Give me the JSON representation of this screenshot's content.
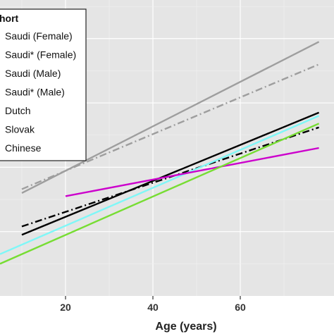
{
  "chart_data": {
    "type": "line",
    "xlabel": "Age (years)",
    "ylabel": "",
    "title": "",
    "xlim": [
      5,
      78
    ],
    "x_ticks": [
      20,
      40,
      60
    ],
    "grid": true,
    "legend": {
      "title": "hort",
      "placement": "top-left"
    },
    "series": [
      {
        "name": "Saudi (Female)",
        "color": "#9e9e9e",
        "dash": "solid",
        "x": [
          10,
          78
        ],
        "y": [
          0.6,
          2.95
        ]
      },
      {
        "name": "Saudi* (Female)",
        "color": "#9e9e9e",
        "dash": "dashdot",
        "x": [
          10,
          78
        ],
        "y": [
          0.66,
          2.6
        ]
      },
      {
        "name": "Saudi (Male)",
        "color": "#000000",
        "dash": "solid",
        "x": [
          10,
          78
        ],
        "y": [
          -0.05,
          1.85
        ]
      },
      {
        "name": "Saudi* (Male)",
        "color": "#000000",
        "dash": "dashdot",
        "x": [
          10,
          78
        ],
        "y": [
          0.08,
          1.62
        ]
      },
      {
        "name": "Dutch",
        "color": "#7ff7f7",
        "dash": "solid",
        "x": [
          5,
          78
        ],
        "y": [
          -0.35,
          1.8
        ]
      },
      {
        "name": "Slovak",
        "color": "#cc00cc",
        "dash": "solid",
        "x": [
          20,
          78
        ],
        "y": [
          0.55,
          1.3
        ]
      },
      {
        "name": "Chinese",
        "color": "#77dd33",
        "dash": "solid",
        "x": [
          5,
          78
        ],
        "y": [
          -0.5,
          1.68
        ]
      }
    ]
  }
}
